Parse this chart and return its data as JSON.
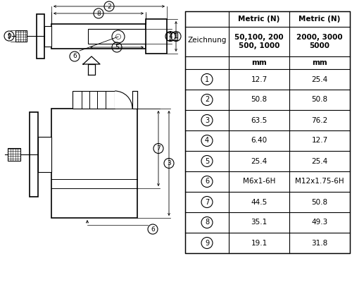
{
  "table_headers": [
    "Zeichnung",
    "Metric (N)",
    "Metric (N)"
  ],
  "subheaders_col1": "50,100, 200\n500, 1000",
  "subheaders_col2": "2000, 3000\n5000",
  "unit": "mm",
  "rows": [
    [
      "1",
      "12.7",
      "25.4"
    ],
    [
      "2",
      "50.8",
      "50.8"
    ],
    [
      "3",
      "63.5",
      "76.2"
    ],
    [
      "4",
      "6.40",
      "12.7"
    ],
    [
      "5",
      "25.4",
      "25.4"
    ],
    [
      "6",
      "M6x1-6H",
      "M12x1.75-6H"
    ],
    [
      "7",
      "44.5",
      "50.8"
    ],
    [
      "8",
      "35.1",
      "49.3"
    ],
    [
      "9",
      "19.1",
      "31.8"
    ]
  ],
  "bg_color": "#ffffff"
}
